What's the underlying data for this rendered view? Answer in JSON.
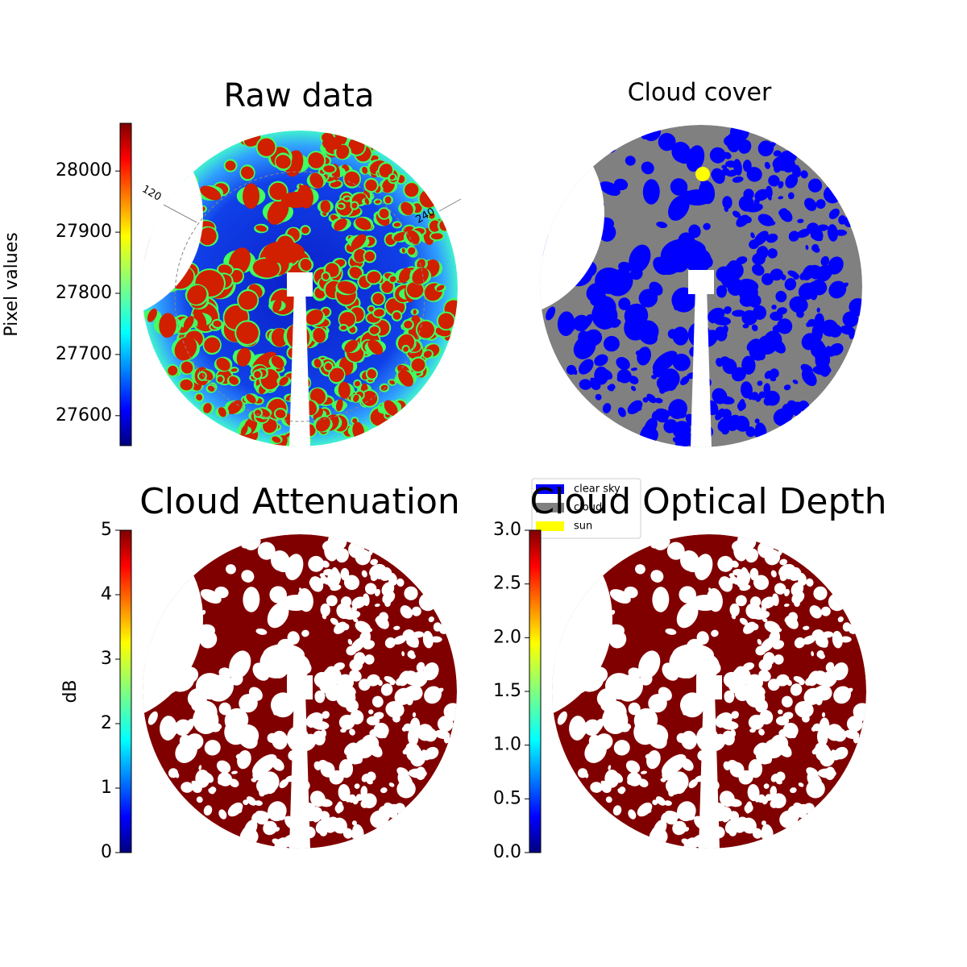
{
  "chart_data": [
    {
      "type": "image",
      "title": "Raw data",
      "cmap": "jet",
      "colorbar": {
        "label": "Pixel values",
        "clim": [
          27551,
          28078
        ],
        "ticks": [
          27600,
          27700,
          27800,
          27900,
          28000
        ]
      },
      "azimuth_ticks": [
        120,
        240
      ]
    },
    {
      "type": "image",
      "title": "Cloud cover",
      "legend": [
        {
          "name": "clear sky",
          "color": "#0000ff"
        },
        {
          "name": "cloud",
          "color": "#808080"
        },
        {
          "name": "sun",
          "color": "#ffff00"
        }
      ]
    },
    {
      "type": "image",
      "title": "Cloud Attenuation",
      "cmap": "jet",
      "colorbar": {
        "label": "dB",
        "clim": [
          0,
          5
        ],
        "ticks": [
          0,
          1,
          2,
          3,
          4,
          5
        ]
      }
    },
    {
      "type": "image",
      "title": "Cloud Optical Depth",
      "cmap": "jet",
      "colorbar": {
        "clim": [
          0,
          3
        ],
        "ticks": [
          {
            "value": 0,
            "label": "0.0"
          },
          {
            "value": 0.5,
            "label": "0.5"
          },
          {
            "value": 1,
            "label": "1.0"
          },
          {
            "value": 1.5,
            "label": "1.5"
          },
          {
            "value": 2,
            "label": "2.0"
          },
          {
            "value": 2.5,
            "label": "2.5"
          },
          {
            "value": 3,
            "label": "3.0"
          }
        ]
      }
    }
  ]
}
